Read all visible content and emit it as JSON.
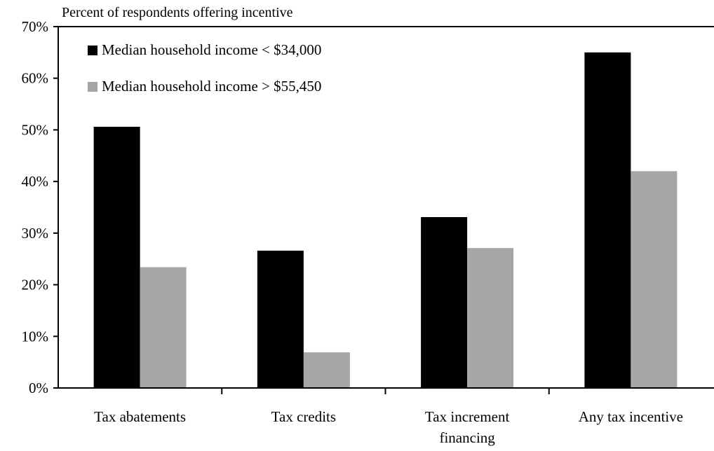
{
  "chart_data": {
    "type": "bar",
    "ylabel": "Percent of respondents offering incentive",
    "categories": [
      "Tax abatements",
      "Tax credits",
      "Tax increment financing",
      "Any tax incentive"
    ],
    "category_lines": [
      [
        "Tax abatements"
      ],
      [
        "Tax credits"
      ],
      [
        "Tax increment",
        "financing"
      ],
      [
        "Any tax incentive"
      ]
    ],
    "series": [
      {
        "name": "Median household income < $34,000",
        "color": "#000000",
        "values": [
          50.6,
          26.6,
          33.1,
          65.0
        ]
      },
      {
        "name": "Median household income > $55,450",
        "color": "#a6a6a6",
        "values": [
          23.4,
          6.9,
          27.1,
          42.0
        ]
      }
    ],
    "ylim": [
      0,
      70
    ],
    "yticks": [
      0,
      10,
      20,
      30,
      40,
      50,
      60,
      70
    ],
    "ytick_labels": [
      "0%",
      "10%",
      "20%",
      "30%",
      "40%",
      "50%",
      "60%",
      "70%"
    ],
    "legend_position": "top-left",
    "grid": false
  }
}
